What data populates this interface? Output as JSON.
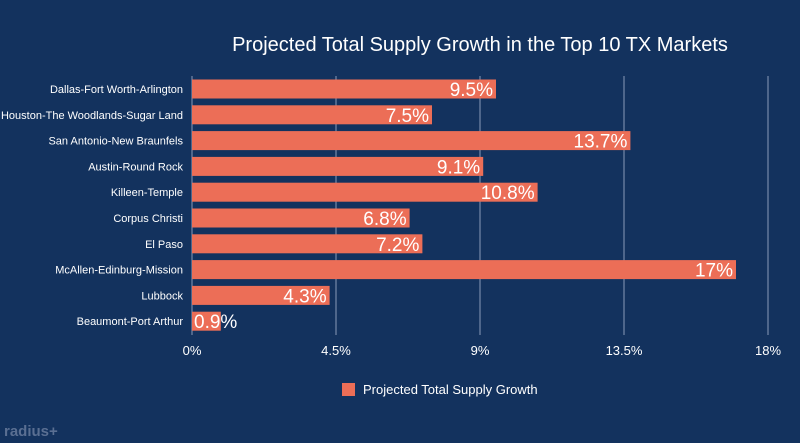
{
  "chart_data": {
    "type": "bar",
    "orientation": "horizontal",
    "title": "Projected Total Supply Growth in the Top 10 TX Markets",
    "categories": [
      "Dallas-Fort Worth-Arlington",
      "Houston-The Woodlands-Sugar Land",
      "San Antonio-New Braunfels",
      "Austin-Round Rock",
      "Killeen-Temple",
      "Corpus Christi",
      "El Paso",
      "McAllen-Edinburg-Mission",
      "Lubbock",
      "Beaumont-Port Arthur"
    ],
    "series": [
      {
        "name": "Projected Total Supply Growth",
        "values": [
          9.5,
          7.5,
          13.7,
          9.1,
          10.8,
          6.8,
          7.2,
          17,
          4.3,
          0.9
        ],
        "labels": [
          "9.5%",
          "7.5%",
          "13.7%",
          "9.1%",
          "10.8%",
          "6.8%",
          "7.2%",
          "17%",
          "4.3%",
          "0.9%"
        ],
        "color": "#ec6e57"
      }
    ],
    "xlim": [
      0,
      18
    ],
    "xticks": [
      0,
      4.5,
      9,
      13.5,
      18
    ],
    "xtick_labels": [
      "0%",
      "4.5%",
      "9%",
      "13.5%",
      "18%"
    ],
    "grid": true,
    "legend": "bottom"
  },
  "legend_label": "Projected Total Supply Growth",
  "logo": "radius+",
  "colors": {
    "background": "#13325e",
    "bar": "#ec6e57"
  }
}
